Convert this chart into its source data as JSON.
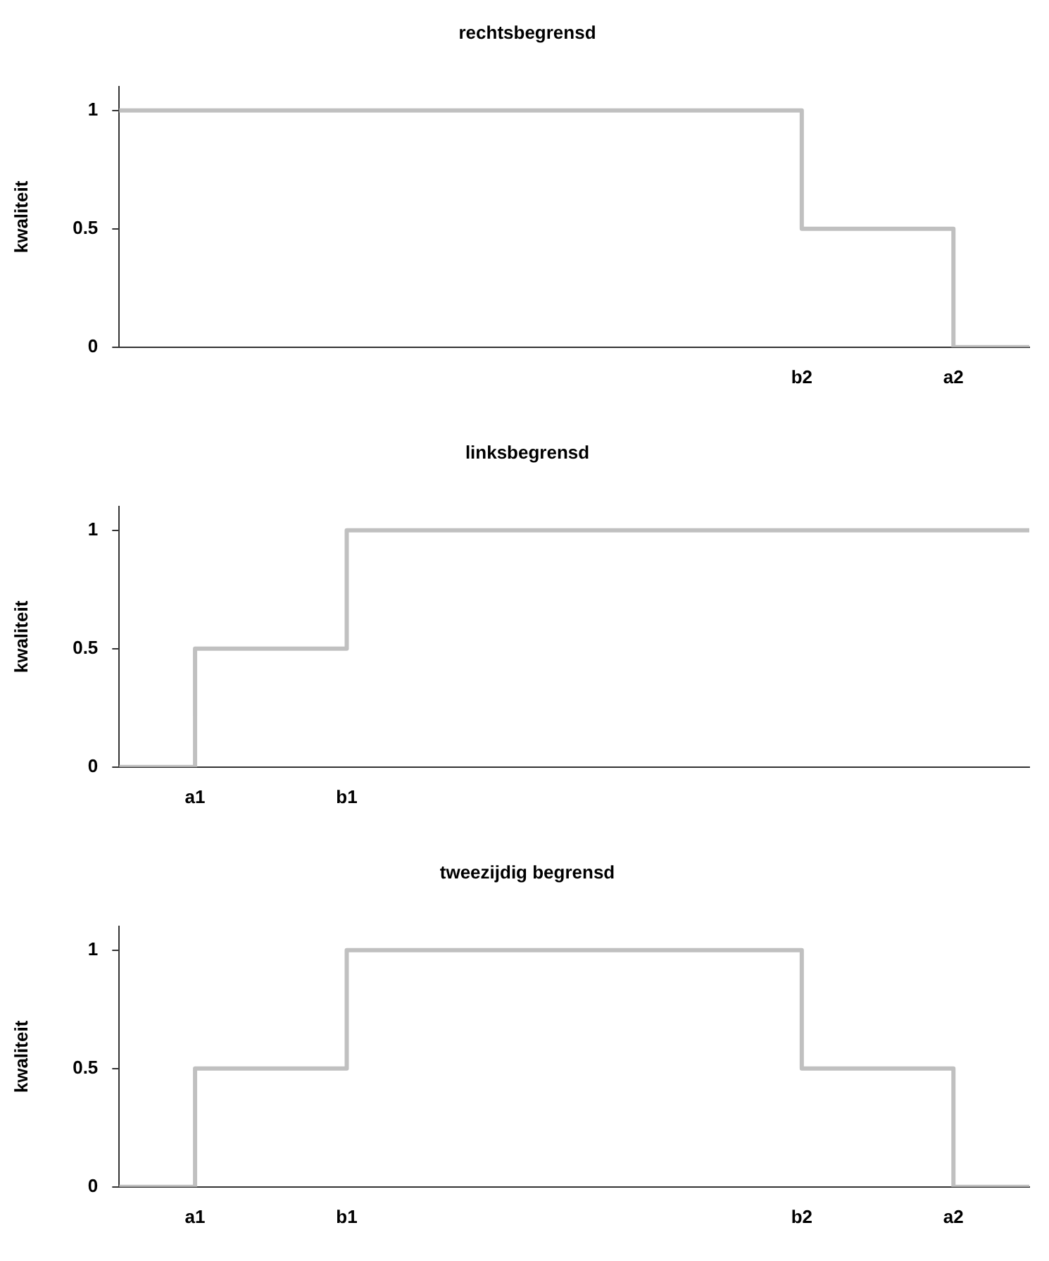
{
  "chart_data": [
    {
      "type": "step",
      "title": "rechtsbegrensd",
      "ylabel": "kwaliteit",
      "categories": [
        null,
        null,
        null,
        null,
        null,
        null,
        null,
        null,
        null,
        "b2",
        null,
        "a2",
        null
      ],
      "values": [
        1,
        1,
        1,
        1,
        1,
        1,
        1,
        1,
        1,
        0.5,
        0.5,
        0,
        0
      ],
      "color": "#c0c0c0",
      "ylim": [
        0,
        1.1
      ],
      "yticks": [
        0,
        0.5,
        1
      ],
      "grid": false,
      "legend": false
    },
    {
      "type": "step",
      "title": "linksbegrensd",
      "ylabel": "kwaliteit",
      "categories": [
        null,
        "a1",
        null,
        "b1",
        null,
        null,
        null,
        null,
        null,
        null,
        null,
        null,
        null
      ],
      "values": [
        0,
        0.5,
        0.5,
        1,
        1,
        1,
        1,
        1,
        1,
        1,
        1,
        1,
        1
      ],
      "color": "#c0c0c0",
      "ylim": [
        0,
        1.1
      ],
      "yticks": [
        0,
        0.5,
        1
      ],
      "grid": false,
      "legend": false
    },
    {
      "type": "step",
      "title": "tweezijdig begrensd",
      "ylabel": "kwaliteit",
      "categories": [
        null,
        "a1",
        null,
        "b1",
        null,
        null,
        null,
        null,
        null,
        "b2",
        null,
        "a2",
        null
      ],
      "values": [
        0,
        0.5,
        0.5,
        1,
        1,
        1,
        1,
        1,
        1,
        0.5,
        0.5,
        0,
        0
      ],
      "color": "#c0c0c0",
      "ylim": [
        0,
        1.1
      ],
      "yticks": [
        0,
        0.5,
        1
      ],
      "grid": false,
      "legend": false
    }
  ]
}
